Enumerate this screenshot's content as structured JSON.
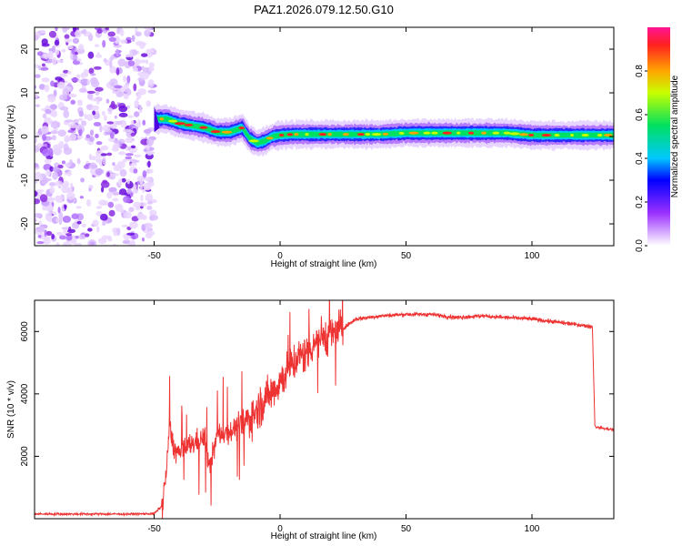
{
  "title": "PAZ1.2026.079.12.50.G10",
  "chart_data": [
    {
      "type": "heatmap",
      "name": "spectrogram",
      "xlabel": "Height of straight line (km)",
      "ylabel": "Frequency (Hz)",
      "xlim": [
        -97.5,
        132.5
      ],
      "ylim": [
        -25,
        25
      ],
      "xticks": [
        -50,
        0,
        50,
        100
      ],
      "yticks": [
        -20,
        -10,
        0,
        10,
        20
      ],
      "noise_region_x": [
        -97.5,
        -50
      ],
      "onset_km": -50,
      "onset_spike_hz": 7,
      "frequency_track": {
        "x": [
          -50,
          -45,
          -40,
          -35,
          -30,
          -25,
          -20,
          -15,
          -12,
          -9,
          -6,
          -3,
          0,
          5,
          10,
          20,
          30,
          40,
          50,
          60,
          70,
          80,
          90,
          100,
          110,
          120,
          132.5
        ],
        "y": [
          4,
          4,
          3,
          2.5,
          2,
          1,
          1,
          2,
          -0.5,
          -1.5,
          -1,
          0,
          0.3,
          0.5,
          0.5,
          0.5,
          0.5,
          0.5,
          0.8,
          0.8,
          0.8,
          0.8,
          0.8,
          0.3,
          0.3,
          0.3,
          0.3
        ]
      },
      "colorbar": {
        "label": "Normalized spectral amplitude",
        "range": [
          0,
          1
        ],
        "ticks": [
          "0.0",
          "0.2",
          "0.4",
          "0.6",
          "0.8"
        ]
      }
    },
    {
      "type": "line",
      "name": "snr",
      "xlabel": "Height of straight line (km)",
      "ylabel": "SNR (10 * v/v)",
      "xlim": [
        -97.5,
        132.5
      ],
      "ylim": [
        0,
        7000
      ],
      "xticks": [
        -50,
        0,
        50,
        100
      ],
      "yticks": [
        2000,
        4000,
        6000
      ],
      "color": "#ee3333",
      "series": [
        {
          "name": "SNR",
          "x": [
            -97.5,
            -60,
            -50,
            -47,
            -45,
            -44,
            -42,
            -40,
            -35,
            -30,
            -28,
            -25,
            -20,
            -15,
            -10,
            -5,
            0,
            5,
            10,
            15,
            20,
            25,
            30,
            40,
            50,
            60,
            70,
            80,
            90,
            100,
            110,
            120,
            124,
            125,
            128,
            132.5
          ],
          "y": [
            150,
            150,
            160,
            400,
            1600,
            3000,
            2200,
            2100,
            2400,
            2600,
            1600,
            2700,
            2800,
            3000,
            3400,
            3900,
            4400,
            5000,
            5300,
            5800,
            5900,
            6100,
            6400,
            6500,
            6550,
            6550,
            6450,
            6500,
            6450,
            6400,
            6300,
            6200,
            6150,
            2950,
            2900,
            2850
          ]
        }
      ]
    }
  ]
}
